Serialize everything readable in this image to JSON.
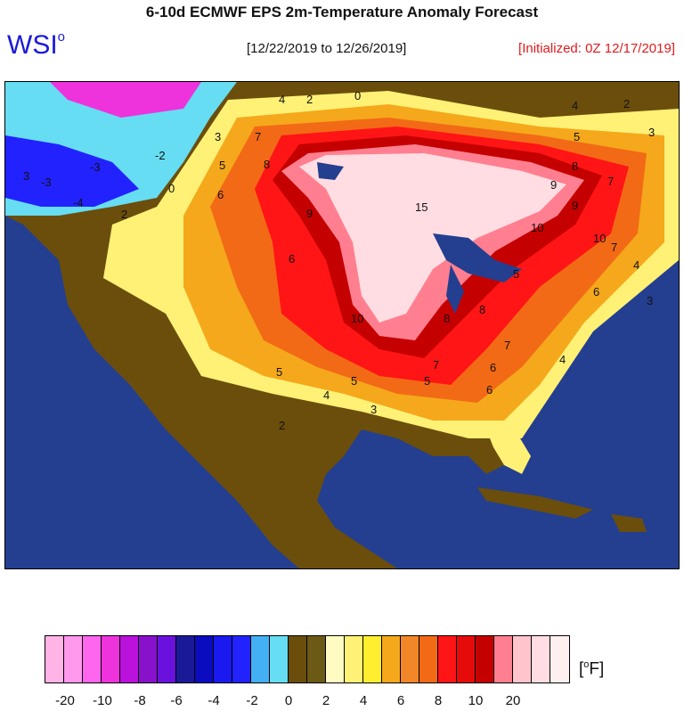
{
  "header": {
    "title": "6-10d ECMWF EPS 2m-Temperature Anomaly Forecast",
    "logo_text": "WSI",
    "logo_mark": "o",
    "date_range": "[12/22/2019 to 12/26/2019]",
    "initialized": "[Initialized: 0Z 12/17/2019]"
  },
  "map": {
    "ocean_color": "#243f8f",
    "contour_labels": [
      "4",
      "2",
      "0",
      "3",
      "5",
      "7",
      "6",
      "8",
      "9",
      "15",
      "10",
      "9",
      "8",
      "7",
      "6",
      "5",
      "4",
      "3",
      "2",
      "2",
      "0",
      "-2",
      "-3",
      "-4",
      "-3",
      "6",
      "5",
      "4",
      "3",
      "2",
      "10",
      "8",
      "7",
      "6",
      "5",
      "4",
      "3",
      "4",
      "5",
      "6",
      "7",
      "8",
      "9",
      "10",
      "7",
      "5",
      "3"
    ]
  },
  "legend": {
    "colors": [
      "#ffb3e6",
      "#ff99ee",
      "#ff66ee",
      "#ee33dd",
      "#bb11dd",
      "#8811cc",
      "#6a11dd",
      "#1a1a99",
      "#0b0bc0",
      "#1a1af0",
      "#2222ff",
      "#44b0f4",
      "#66ddf2",
      "#6b4e0c",
      "#6b5a16",
      "#fffbc3",
      "#fff176",
      "#ffee30",
      "#f5a81b",
      "#f2872a",
      "#f26a16",
      "#ff1515",
      "#e50b0b",
      "#c50000",
      "#ff7f90",
      "#ffc4cc",
      "#ffdde2",
      "#fff0f0"
    ],
    "tick_labels": [
      "-20",
      "-10",
      "-8",
      "-6",
      "-4",
      "-2",
      "0",
      "2",
      "4",
      "6",
      "8",
      "10",
      "20"
    ],
    "unit": "[°F]",
    "unit_deg": "o",
    "unit_letter": "F"
  }
}
